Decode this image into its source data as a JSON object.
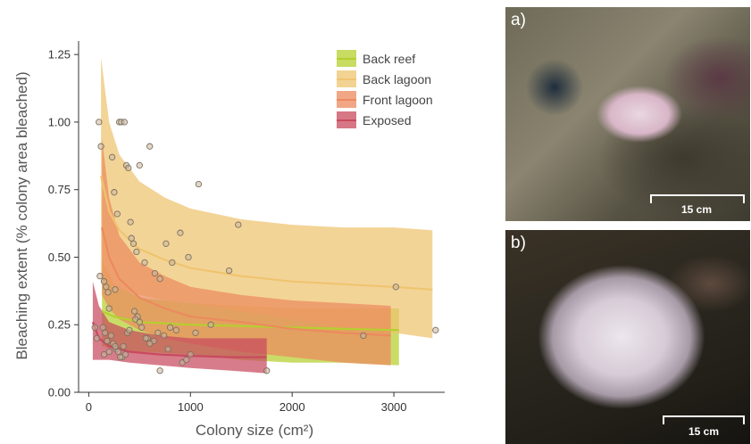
{
  "chart_data": {
    "type": "scatter",
    "title": "",
    "xlabel": "Colony size (cm²)",
    "ylabel": "Bleaching extent (% colony area bleached)",
    "xlim": [
      -100,
      3500
    ],
    "ylim": [
      0,
      1.3
    ],
    "xticks": [
      0,
      1000,
      2000,
      3000
    ],
    "yticks": [
      0.0,
      0.25,
      0.5,
      0.75,
      1.0,
      1.25
    ],
    "ytick_labels": [
      "0.00",
      "0.25",
      "0.50",
      "0.75",
      "1.00",
      "1.25"
    ],
    "legend_position": "top-right",
    "series": [
      {
        "name": "Back reef",
        "color": "#b5cf2e",
        "line": {
          "x": [
            130,
            250,
            500,
            1000,
            1500,
            2000,
            2500,
            3050
          ],
          "y": [
            0.3,
            0.28,
            0.26,
            0.25,
            0.245,
            0.24,
            0.235,
            0.23
          ]
        },
        "band": {
          "x": [
            130,
            250,
            500,
            1000,
            1500,
            2000,
            2500,
            3050
          ],
          "lower": [
            0.17,
            0.16,
            0.15,
            0.14,
            0.12,
            0.11,
            0.11,
            0.1
          ],
          "upper": [
            0.49,
            0.4,
            0.35,
            0.33,
            0.32,
            0.31,
            0.31,
            0.31
          ]
        }
      },
      {
        "name": "Back lagoon",
        "color": "#efc46f",
        "line": {
          "x": [
            120,
            200,
            300,
            500,
            750,
            1000,
            1500,
            2000,
            2500,
            3000,
            3380
          ],
          "y": [
            0.8,
            0.67,
            0.6,
            0.53,
            0.49,
            0.46,
            0.43,
            0.41,
            0.4,
            0.39,
            0.38
          ]
        },
        "band": {
          "x": [
            120,
            200,
            300,
            500,
            750,
            1000,
            1500,
            2000,
            2500,
            3000,
            3380
          ],
          "lower": [
            0.42,
            0.4,
            0.38,
            0.36,
            0.34,
            0.33,
            0.3,
            0.27,
            0.24,
            0.22,
            0.2
          ],
          "upper": [
            1.24,
            1.0,
            0.88,
            0.78,
            0.72,
            0.68,
            0.64,
            0.62,
            0.61,
            0.61,
            0.6
          ]
        }
      },
      {
        "name": "Front lagoon",
        "color": "#ec8a5e",
        "line": {
          "x": [
            130,
            200,
            300,
            500,
            750,
            1000,
            1500,
            2000,
            2500,
            2970
          ],
          "y": [
            0.61,
            0.5,
            0.42,
            0.35,
            0.31,
            0.28,
            0.26,
            0.235,
            0.22,
            0.21
          ]
        },
        "band": {
          "x": [
            130,
            200,
            300,
            500,
            750,
            1000,
            1500,
            2000,
            2500,
            2970
          ],
          "lower": [
            0.36,
            0.31,
            0.27,
            0.23,
            0.2,
            0.18,
            0.15,
            0.13,
            0.11,
            0.1
          ],
          "upper": [
            0.94,
            0.72,
            0.58,
            0.48,
            0.43,
            0.39,
            0.36,
            0.34,
            0.33,
            0.32
          ]
        }
      },
      {
        "name": "Exposed",
        "color": "#c84a5e",
        "line": {
          "x": [
            40,
            100,
            200,
            400,
            700,
            1000,
            1400,
            1750
          ],
          "y": [
            0.26,
            0.2,
            0.17,
            0.15,
            0.14,
            0.135,
            0.13,
            0.13
          ]
        },
        "band": {
          "x": [
            40,
            100,
            200,
            400,
            700,
            1000,
            1400,
            1750
          ],
          "lower": [
            0.12,
            0.12,
            0.12,
            0.11,
            0.1,
            0.09,
            0.08,
            0.07
          ],
          "upper": [
            0.41,
            0.32,
            0.26,
            0.23,
            0.21,
            0.2,
            0.2,
            0.2
          ]
        }
      }
    ],
    "points": {
      "x": [
        100,
        120,
        150,
        170,
        190,
        200,
        230,
        250,
        260,
        280,
        300,
        320,
        350,
        370,
        390,
        410,
        420,
        440,
        470,
        500,
        550,
        600,
        650,
        700,
        760,
        820,
        900,
        980,
        1080,
        1200,
        1380,
        1470,
        1750,
        2700,
        3020,
        3410,
        60,
        80,
        110,
        140,
        160,
        180,
        220,
        240,
        270,
        290,
        330,
        360,
        380,
        450,
        480,
        520,
        580,
        640,
        680,
        740,
        800,
        860,
        920,
        960,
        1000,
        1050,
        150,
        200,
        260,
        310,
        340,
        400,
        460,
        500,
        560,
        600,
        700,
        780
      ],
      "y": [
        1.0,
        0.91,
        0.41,
        0.39,
        0.37,
        0.31,
        0.87,
        0.74,
        0.38,
        0.66,
        1.0,
        1.0,
        1.0,
        0.84,
        0.83,
        0.63,
        0.57,
        0.55,
        0.52,
        0.84,
        0.48,
        0.91,
        0.44,
        0.42,
        0.55,
        0.48,
        0.59,
        0.5,
        0.77,
        0.25,
        0.45,
        0.62,
        0.08,
        0.21,
        0.39,
        0.23,
        0.24,
        0.2,
        0.43,
        0.24,
        0.22,
        0.19,
        0.21,
        0.18,
        0.16,
        0.15,
        0.13,
        0.14,
        0.22,
        0.3,
        0.28,
        0.24,
        0.2,
        0.19,
        0.22,
        0.21,
        0.24,
        0.23,
        0.11,
        0.12,
        0.14,
        0.22,
        0.14,
        0.15,
        0.17,
        0.13,
        0.17,
        0.23,
        0.27,
        0.26,
        0.2,
        0.18,
        0.08,
        0.16
      ]
    }
  },
  "legend": [
    {
      "label": "Back reef",
      "color": "#b5cf2e"
    },
    {
      "label": "Back lagoon",
      "color": "#efc46f"
    },
    {
      "label": "Front lagoon",
      "color": "#ec8a5e"
    },
    {
      "label": "Exposed",
      "color": "#c84a5e"
    }
  ],
  "photos": {
    "a": {
      "label": "a)",
      "scale_label": "15 cm"
    },
    "b": {
      "label": "b)",
      "scale_label": "15 cm"
    }
  }
}
